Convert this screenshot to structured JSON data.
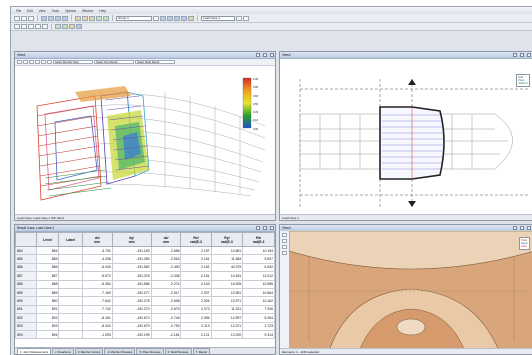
{
  "menu": [
    "File",
    "Edit",
    "View",
    "Tools",
    "Options",
    "Window",
    "Help"
  ],
  "toolbar": {
    "combo1": "Group 1",
    "combo2": "Load Case 1"
  },
  "panel3d": {
    "title": "View1",
    "combos": [
      "Select Member Data",
      "Select Joint Result",
      "Select Node Result"
    ],
    "colorbar_labels": [
      "1.00",
      "0.85",
      "0.66",
      "0.50",
      "0.33",
      "0.16",
      "0.00"
    ],
    "status": "Load Case: Load Case 1  SW: Elem"
  },
  "panelPlan": {
    "title": "View2",
    "legend": [
      "Hull",
      "Plate",
      "Stiffener"
    ],
    "status": "Load Case 1"
  },
  "panelTable": {
    "title": "Result Case: Load Case 2",
    "columns": [
      {
        "h1": "",
        "h2": ""
      },
      {
        "h1": "Level",
        "h2": ""
      },
      {
        "h1": "Label",
        "h2": ""
      },
      {
        "h1": "dx/",
        "h2": "mm"
      },
      {
        "h1": "dy/",
        "h2": "mm"
      },
      {
        "h1": "dz/",
        "h2": "mm"
      },
      {
        "h1": "Rx/",
        "h2": "rad(E-3"
      },
      {
        "h1": "Ry/",
        "h2": "rad(E-3"
      },
      {
        "h1": "Rz/",
        "h2": "rad(E-3"
      }
    ],
    "rows": [
      [
        "884",
        "884",
        "",
        "-3.731",
        "-191.153",
        "-2.655",
        "2.157",
        "10.851",
        "10.194"
      ],
      [
        "885",
        "885",
        "",
        "-4.336",
        "-191.359",
        "-2.516",
        "2.161",
        "11.564",
        "9.537"
      ],
      [
        "886",
        "886",
        "",
        "-5.040",
        "-191.562",
        "-2.400",
        "2.162",
        "40.375",
        "6.532"
      ],
      [
        "887",
        "887",
        "",
        "-5.672",
        "-191.376",
        "-2.336",
        "2.151",
        "10.451",
        "11.012"
      ],
      [
        "888",
        "888",
        "",
        "-6.354",
        "-191.566",
        "-2.274",
        "2.143",
        "10.525",
        "10.596"
      ],
      [
        "889",
        "889",
        "",
        "-7.160",
        "-192.077",
        "-2.517",
        "2.037",
        "10.551",
        "10.664"
      ],
      [
        "890",
        "890",
        "",
        "-7.642",
        "-192.278",
        "-2.638",
        "2.026",
        "10.971",
        "10.162"
      ],
      [
        "891",
        "891",
        "",
        "-7.742",
        "-192.273",
        "-2.679",
        "2.073",
        "11.321",
        "7.926"
      ],
      [
        "892",
        "892",
        "",
        "-8.161",
        "-192.673",
        "-2.746",
        "2.096",
        "12.597",
        "8.264"
      ],
      [
        "893",
        "893",
        "",
        "-8.342",
        "-192.679",
        "-2.753",
        "2.113",
        "12.371",
        "2.723"
      ],
      [
        "894",
        "894",
        "",
        "-1.093",
        "-192.199",
        "-2.181",
        "2.121",
        "12.020",
        "9.314"
      ]
    ],
    "tabs": [
      "1: Joint Displacements",
      "2: Reactions",
      "3: Member Forces",
      "4: Member Stresses",
      "5: Plate Stresses",
      "6: Solid Stresses",
      "7: Report"
    ]
  },
  "panelSection": {
    "title": "View4",
    "legend": [
      "Plate",
      "Beam",
      "Joint"
    ],
    "status": "Elements: 1 - 1154 selected"
  }
}
